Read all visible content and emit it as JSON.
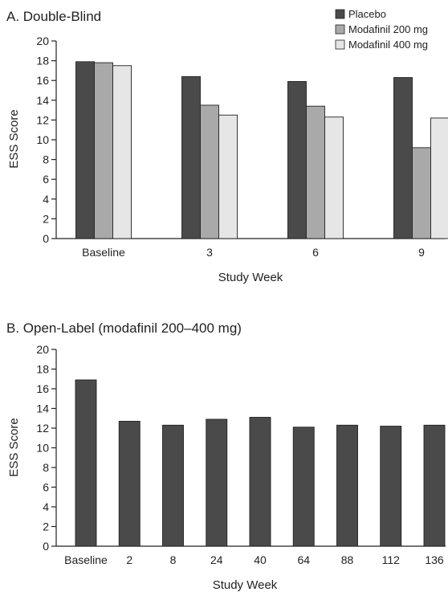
{
  "chart_data": [
    {
      "type": "bar",
      "title": "A. Double-Blind",
      "xlabel": "Study Week",
      "ylabel": "ESS Score",
      "ylim": [
        0,
        20
      ],
      "yticks": [
        "0",
        "2",
        "4",
        "6",
        "8",
        "10",
        "12",
        "14",
        "16",
        "18",
        "20"
      ],
      "categories": [
        "Baseline",
        "3",
        "6",
        "9"
      ],
      "legend_position": "top-right",
      "series": [
        {
          "name": "Placebo",
          "color": "#4a4a4a",
          "values": [
            17.9,
            16.4,
            15.9,
            16.3
          ]
        },
        {
          "name": "Modafinil 200 mg",
          "color": "#a9a9a9",
          "values": [
            17.8,
            13.5,
            13.4,
            9.2
          ]
        },
        {
          "name": "Modafinil 400 mg",
          "color": "#e6e6e6",
          "values": [
            17.5,
            12.5,
            12.3,
            12.2
          ]
        }
      ],
      "grid": false
    },
    {
      "type": "bar",
      "title": "B. Open-Label (modafinil 200–400 mg)",
      "xlabel": "Study Week",
      "ylabel": "ESS Score",
      "ylim": [
        0,
        20
      ],
      "yticks": [
        "0",
        "2",
        "4",
        "6",
        "8",
        "10",
        "12",
        "14",
        "16",
        "18",
        "20"
      ],
      "categories": [
        "Baseline",
        "2",
        "8",
        "24",
        "40",
        "64",
        "88",
        "112",
        "136"
      ],
      "series": [
        {
          "color": "#4a4a4a",
          "values": [
            16.9,
            12.7,
            12.3,
            12.9,
            13.1,
            12.1,
            12.3,
            12.2,
            12.3
          ]
        }
      ],
      "grid": false
    }
  ]
}
